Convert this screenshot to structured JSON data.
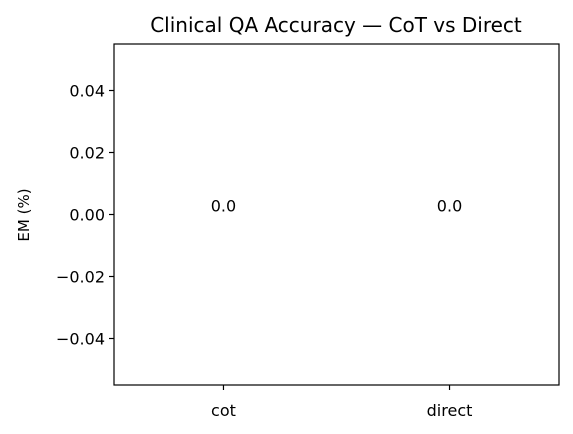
{
  "chart_data": {
    "type": "bar",
    "title": "Clinical QA Accuracy — CoT vs Direct",
    "xlabel": "",
    "ylabel": "EM (%)",
    "categories": [
      "cot",
      "direct"
    ],
    "values": [
      0.0,
      0.0
    ],
    "data_labels": [
      "0.0",
      "0.0"
    ],
    "ylim": [
      -0.055,
      0.055
    ],
    "yticks": [
      -0.04,
      -0.02,
      0.0,
      0.02,
      0.04
    ],
    "ytick_labels": [
      "−0.04",
      "−0.02",
      "0.00",
      "0.02",
      "0.04"
    ],
    "grid": false,
    "legend": "none",
    "bar_color": "#1f77b4"
  }
}
